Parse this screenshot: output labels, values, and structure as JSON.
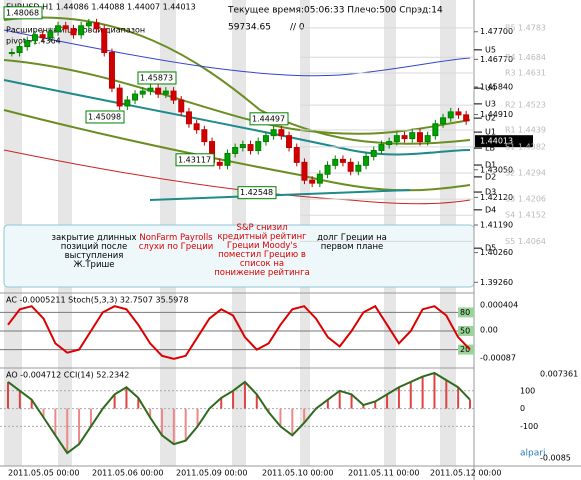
{
  "header": {
    "symbol": "EURUSD,H1 1.44086 1.44088 1.44007 1.44013",
    "status": "Текущее время:05:06:33 Плечо:500 Спрэд:14",
    "balance": "59734.65",
    "marker": "// 0",
    "range_title": "Расширенный ценовой диапазон",
    "pivot": "pivot=1.4364"
  },
  "main": {
    "ylim": [
      1.39,
      1.485
    ],
    "yticks": [
      {
        "value": 1.477,
        "label": "1.47700"
      },
      {
        "value": 1.4677,
        "label": "1.46770"
      },
      {
        "value": 1.4584,
        "label": "1.45840"
      },
      {
        "value": 1.4491,
        "label": "1.44910"
      },
      {
        "value": 1.4305,
        "label": "1.43050"
      },
      {
        "value": 1.4212,
        "label": "1.42120"
      },
      {
        "value": 1.4119,
        "label": "1.41190"
      },
      {
        "value": 1.4026,
        "label": "1.40260"
      },
      {
        "value": 1.3926,
        "label": "1.39260"
      }
    ],
    "current": {
      "value": 1.44013,
      "label": "1.44013"
    },
    "closes": [
      1.47,
      1.472,
      1.474,
      1.476,
      1.475,
      1.477,
      1.479,
      1.478,
      1.476,
      1.479,
      1.48,
      1.478,
      1.47,
      1.458,
      1.452,
      1.454,
      1.456,
      1.457,
      1.458,
      1.456,
      1.457,
      1.454,
      1.45,
      1.446,
      1.444,
      1.44,
      1.433,
      1.432,
      1.436,
      1.438,
      1.439,
      1.437,
      1.44,
      1.442,
      1.444,
      1.442,
      1.438,
      1.433,
      1.427,
      1.426,
      1.429,
      1.432,
      1.434,
      1.433,
      1.43,
      1.432,
      1.435,
      1.437,
      1.439,
      1.44,
      1.442,
      1.441,
      1.443,
      1.44,
      1.442,
      1.446,
      1.448,
      1.45,
      1.449,
      1.447
    ],
    "price_labels": [
      1.48068,
      1.45873,
      1.45098,
      1.43117,
      1.42548,
      1.44497
    ],
    "levels": [
      {
        "name": "U5",
        "value": 1.4709
      },
      {
        "name": "U4",
        "value": 1.458
      },
      {
        "name": "U3",
        "value": 1.4527
      },
      {
        "name": "U2",
        "value": 1.4479
      },
      {
        "name": "U1",
        "value": 1.4432
      },
      {
        "name": "LB",
        "value": 1.4378
      },
      {
        "name": "D1",
        "value": 1.4321
      },
      {
        "name": "D2",
        "value": 1.4281
      },
      {
        "name": "D3",
        "value": 1.423
      },
      {
        "name": "D4",
        "value": 1.417
      },
      {
        "name": "D5",
        "value": 1.4041
      }
    ],
    "pivots": [
      {
        "name": "R5",
        "value": 1.4783
      },
      {
        "name": "R4",
        "value": 1.4684
      },
      {
        "name": "R3",
        "value": 1.4631
      },
      {
        "name": "R2",
        "value": 1.4523
      },
      {
        "name": "R1",
        "value": 1.4439
      },
      {
        "name": "S1",
        "value": 1.4382
      },
      {
        "name": "S2",
        "value": 1.4294
      },
      {
        "name": "S3",
        "value": 1.4206
      },
      {
        "name": "S4",
        "value": 1.4152
      },
      {
        "name": "S5",
        "value": 1.4064
      }
    ],
    "annotations": [
      "закрытие длинных позиций после выступления Ж.Трише",
      "NonFarm Payrolls слухи по Греции",
      "S&P снизил кредитный рейтинг Греции Moody's поместил Грецию в список на понижение рейтинга",
      "долг Греции на первом плане"
    ]
  },
  "stoch": {
    "title": "AC -0.0005211  Stoch(5,3,3) 32.7507 35.5978",
    "ylim": [
      0,
      100
    ],
    "levels": [
      80,
      50,
      20
    ],
    "axis_labels": [
      "0.000404",
      "0.00",
      "-0.00087"
    ],
    "values": [
      60,
      85,
      90,
      70,
      30,
      15,
      20,
      50,
      80,
      90,
      85,
      60,
      30,
      10,
      5,
      10,
      40,
      70,
      85,
      75,
      40,
      20,
      30,
      60,
      85,
      90,
      70,
      40,
      25,
      50,
      80,
      90,
      60,
      30,
      50,
      85,
      90,
      75,
      40,
      20
    ]
  },
  "cci": {
    "title": "AO -0.004712  CCI(14) 52.2342",
    "ylim": [
      -300,
      200
    ],
    "yticks": [
      100,
      0,
      -100
    ],
    "axis_labels": [
      "0.007361",
      "-0.0085"
    ],
    "values": [
      150,
      100,
      50,
      -50,
      -150,
      -250,
      -200,
      -100,
      0,
      80,
      120,
      60,
      -50,
      -150,
      -200,
      -180,
      -100,
      0,
      60,
      100,
      150,
      80,
      -20,
      -100,
      -150,
      -80,
      0,
      50,
      100,
      80,
      20,
      40,
      80,
      120,
      150,
      180,
      200,
      160,
      120,
      50
    ]
  },
  "dates": [
    "2011.05.05 00:00",
    "2011.05.06 00:00",
    "2011.05.09 00:00",
    "2011.05.10 00:00",
    "2011.05.11 00:00",
    "2011.05.12 00:00"
  ],
  "logo": "alpari"
}
